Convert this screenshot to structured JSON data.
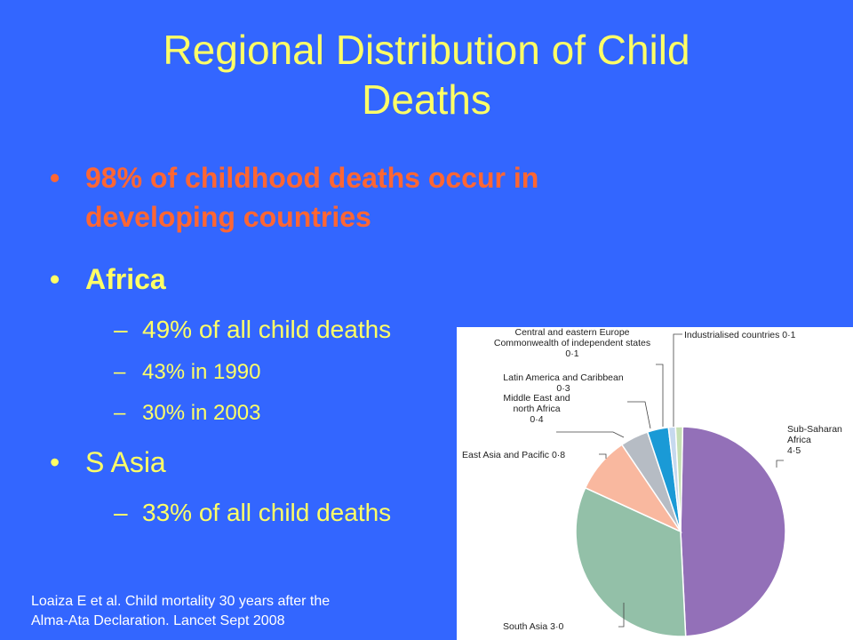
{
  "slide": {
    "title_line1": "Regional Distribution of Child",
    "title_line2": "Deaths",
    "bullets": [
      {
        "bullet": "•",
        "line1": "98% of childhood deaths occur in",
        "line2": "developing countries",
        "color": "#ff6633"
      },
      {
        "bullet": "•",
        "text": "Africa",
        "color": "#ffff66"
      },
      {
        "bullet": "•",
        "text": "S Asia",
        "color": "#ffff66"
      }
    ],
    "africa_sub": [
      {
        "dash": "–",
        "text": "49% of all child deaths"
      },
      {
        "dash": "–",
        "text": "43% in 1990"
      },
      {
        "dash": "–",
        "text": "30% in 2003"
      }
    ],
    "asia_sub": [
      {
        "dash": "–",
        "text": "33% of all child deaths"
      }
    ],
    "citation_line1": "Loaiza E et al. Child mortality 30 years after the",
    "citation_line2": "Alma-Ata Declaration. Lancet Sept 2008"
  },
  "chart_data": {
    "type": "pie",
    "unit": "",
    "slices": [
      {
        "label_lines": [
          "Sub-Saharan",
          "Africa",
          "4·5"
        ],
        "value": 4.5,
        "color": "#9370b8"
      },
      {
        "label_lines": [
          "South Asia 3·0"
        ],
        "value": 3.0,
        "color": "#93c0a8"
      },
      {
        "label_lines": [
          "East Asia and Pacific 0·8"
        ],
        "value": 0.8,
        "color": "#f9b89f"
      },
      {
        "label_lines": [
          "Middle East and",
          "north Africa",
          "0·4"
        ],
        "value": 0.4,
        "color": "#b6bcc4"
      },
      {
        "label_lines": [
          "Latin America and Caribbean",
          "0·3"
        ],
        "value": 0.3,
        "color": "#1a9ad6"
      },
      {
        "label_lines": [
          "Central and eastern Europe",
          "Commonwealth of independent states",
          "0·1"
        ],
        "value": 0.1,
        "color": "#c6d9ee"
      },
      {
        "label_lines": [
          "Industrialised countries 0·1"
        ],
        "value": 0.1,
        "color": "#c6e0b4"
      }
    ]
  }
}
